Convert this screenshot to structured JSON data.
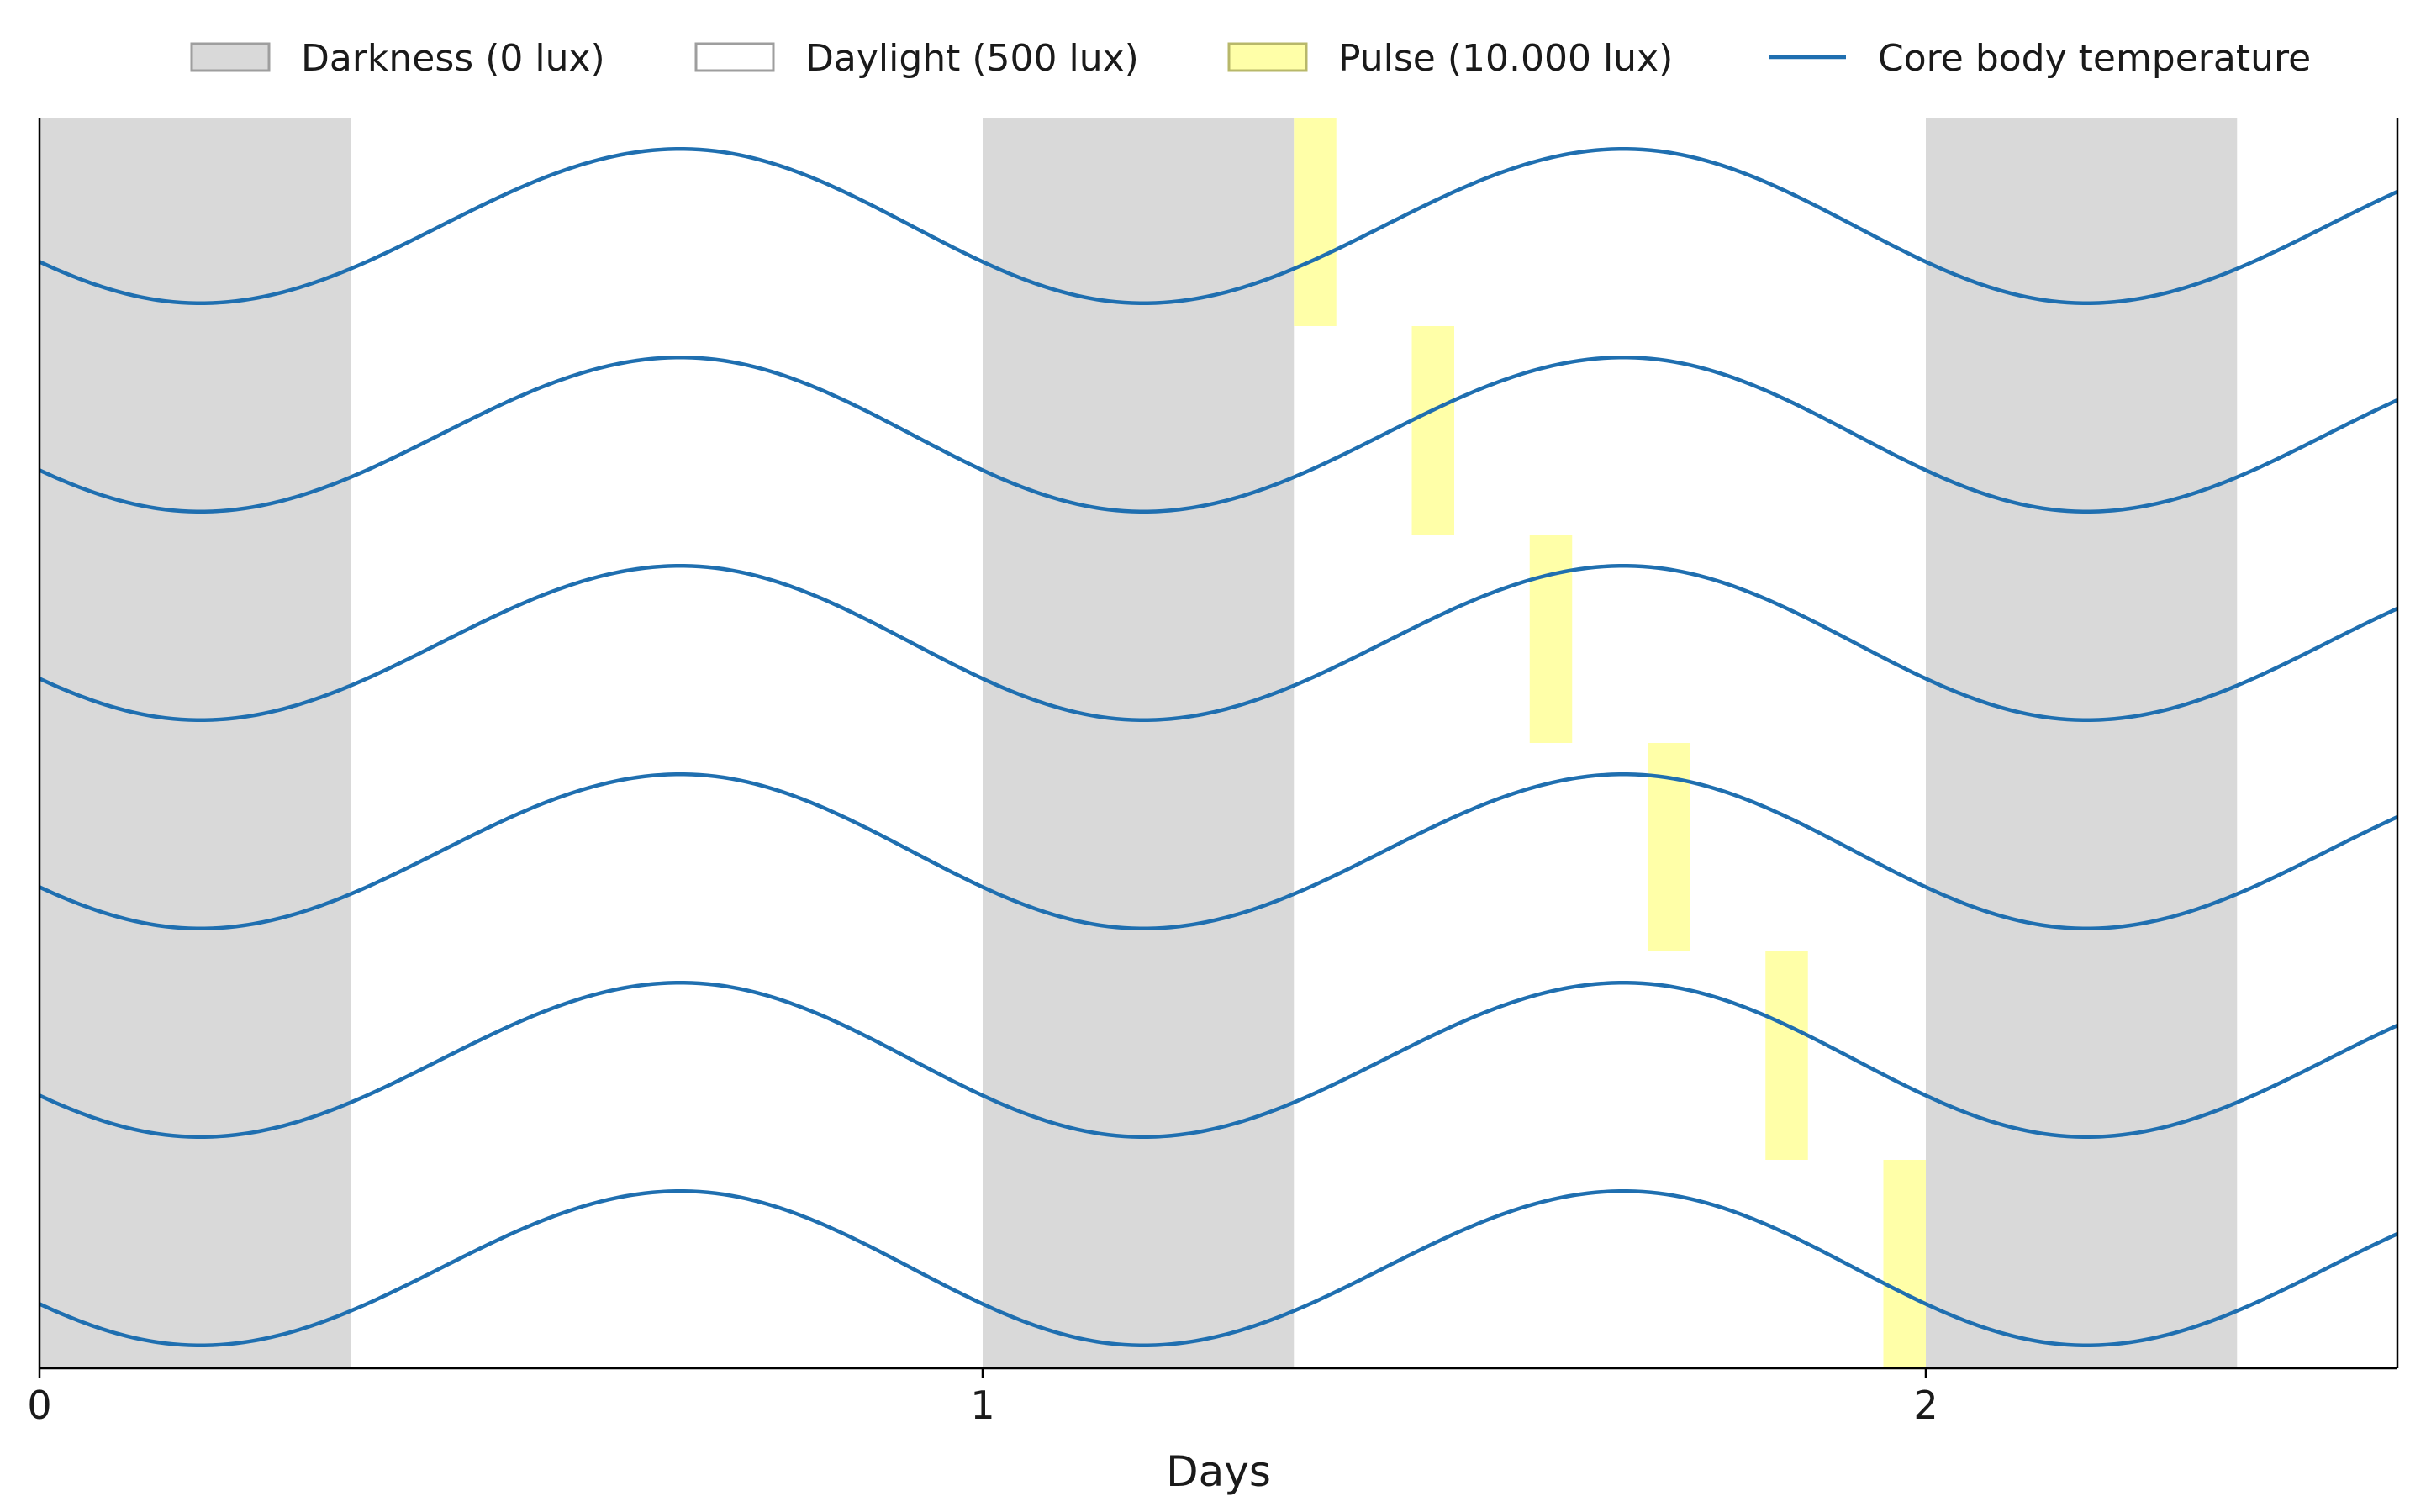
{
  "chart_data": {
    "type": "line",
    "xlabel": "Days",
    "ylabel": "",
    "xlim": [
      0,
      2.5
    ],
    "xticks": [
      0,
      1,
      2
    ],
    "xtick_labels": [
      "0",
      "1",
      "2"
    ],
    "legend_placement": "top",
    "legend": [
      {
        "label": "Darkness (0 lux)",
        "kind": "patch",
        "fill": "#d9d9d9",
        "stroke": "#9e9e9e"
      },
      {
        "label": "Daylight (500 lux)",
        "kind": "patch",
        "fill": "#ffffff",
        "stroke": "#9e9e9e"
      },
      {
        "label": "Pulse (10.000 lux)",
        "kind": "patch",
        "fill": "#ffffa8",
        "stroke": "#b8b86a"
      },
      {
        "label": "Core body temperature",
        "kind": "line",
        "color": "#1f6fb0"
      }
    ],
    "darkness_periods_days": [
      [
        0,
        0.33
      ],
      [
        1.0,
        1.33
      ],
      [
        2.0,
        2.33
      ]
    ],
    "pulse_duration_days": 0.045,
    "rows": [
      {
        "pulse_start_days": 1.33,
        "phase_shift_days": 0.0
      },
      {
        "pulse_start_days": 1.455,
        "phase_shift_days": 0.0
      },
      {
        "pulse_start_days": 1.58,
        "phase_shift_days": 0.0
      },
      {
        "pulse_start_days": 1.705,
        "phase_shift_days": 0.0
      },
      {
        "pulse_start_days": 1.83,
        "phase_shift_days": 0.0
      },
      {
        "pulse_start_days": 1.955,
        "phase_shift_days": 0.0
      }
    ],
    "temperature_model": {
      "period_days": 1.0,
      "peak_day_fraction": 0.68,
      "trough_day_fraction": 0.17
    },
    "grid": false,
    "colors": {
      "line": "#1f6fb0",
      "darkness": "#d9d9d9",
      "pulse": "#ffffa8",
      "axis": "#000000"
    }
  }
}
